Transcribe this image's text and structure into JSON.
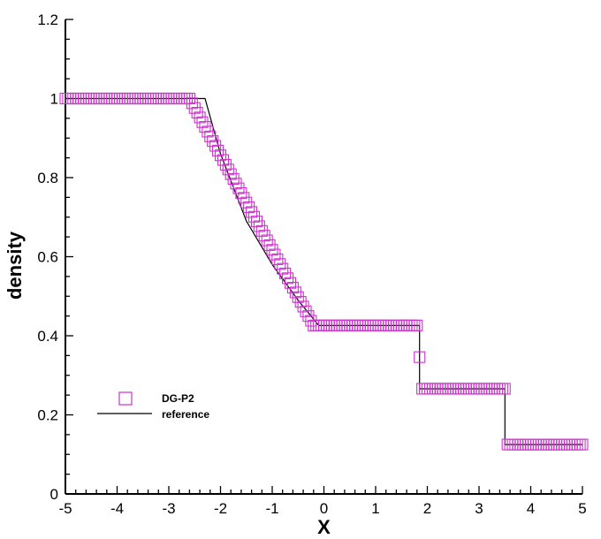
{
  "chart_data": {
    "type": "line",
    "title": "",
    "xlabel": "X",
    "ylabel": "density",
    "xlim": [
      -5,
      5
    ],
    "ylim": [
      0,
      1.2
    ],
    "xticks": [
      "-5",
      "-4",
      "-3",
      "-2",
      "-1",
      "0",
      "1",
      "2",
      "3",
      "4",
      "5"
    ],
    "yticks": [
      "0",
      "0.2",
      "0.4",
      "0.6",
      "0.8",
      "1",
      "1.2"
    ],
    "grid": false,
    "legend_position": "lower-left",
    "series": [
      {
        "name": "DG-P2",
        "style": "markers",
        "marker": "square",
        "color": "#cc33cc",
        "segments": [
          {
            "x_from": -5.0,
            "x_to": -2.6,
            "y_from": 1.0,
            "y_to": 1.0
          },
          {
            "x_from": -2.6,
            "x_to": -0.2,
            "y_from": 1.0,
            "y_to": 0.426
          },
          {
            "x_from": -0.2,
            "x_to": 1.8,
            "y_from": 0.426,
            "y_to": 0.426
          },
          {
            "x_from": 1.8,
            "x_to": 1.9,
            "y_from": 0.426,
            "y_to": 0.266
          },
          {
            "x_from": 1.9,
            "x_to": 3.5,
            "y_from": 0.266,
            "y_to": 0.266
          },
          {
            "x_from": 3.5,
            "x_to": 3.55,
            "y_from": 0.266,
            "y_to": 0.125
          },
          {
            "x_from": 3.55,
            "x_to": 5.0,
            "y_from": 0.125,
            "y_to": 0.125
          }
        ]
      },
      {
        "name": "reference",
        "style": "line",
        "color": "#000000",
        "x": [
          -5.0,
          -2.3,
          -2.0,
          -1.5,
          -1.0,
          -0.5,
          -0.1,
          1.85,
          1.85,
          3.5,
          3.5,
          5.0
        ],
        "y": [
          1.0,
          1.0,
          0.86,
          0.69,
          0.58,
          0.49,
          0.426,
          0.426,
          0.266,
          0.266,
          0.125,
          0.125
        ]
      }
    ]
  }
}
